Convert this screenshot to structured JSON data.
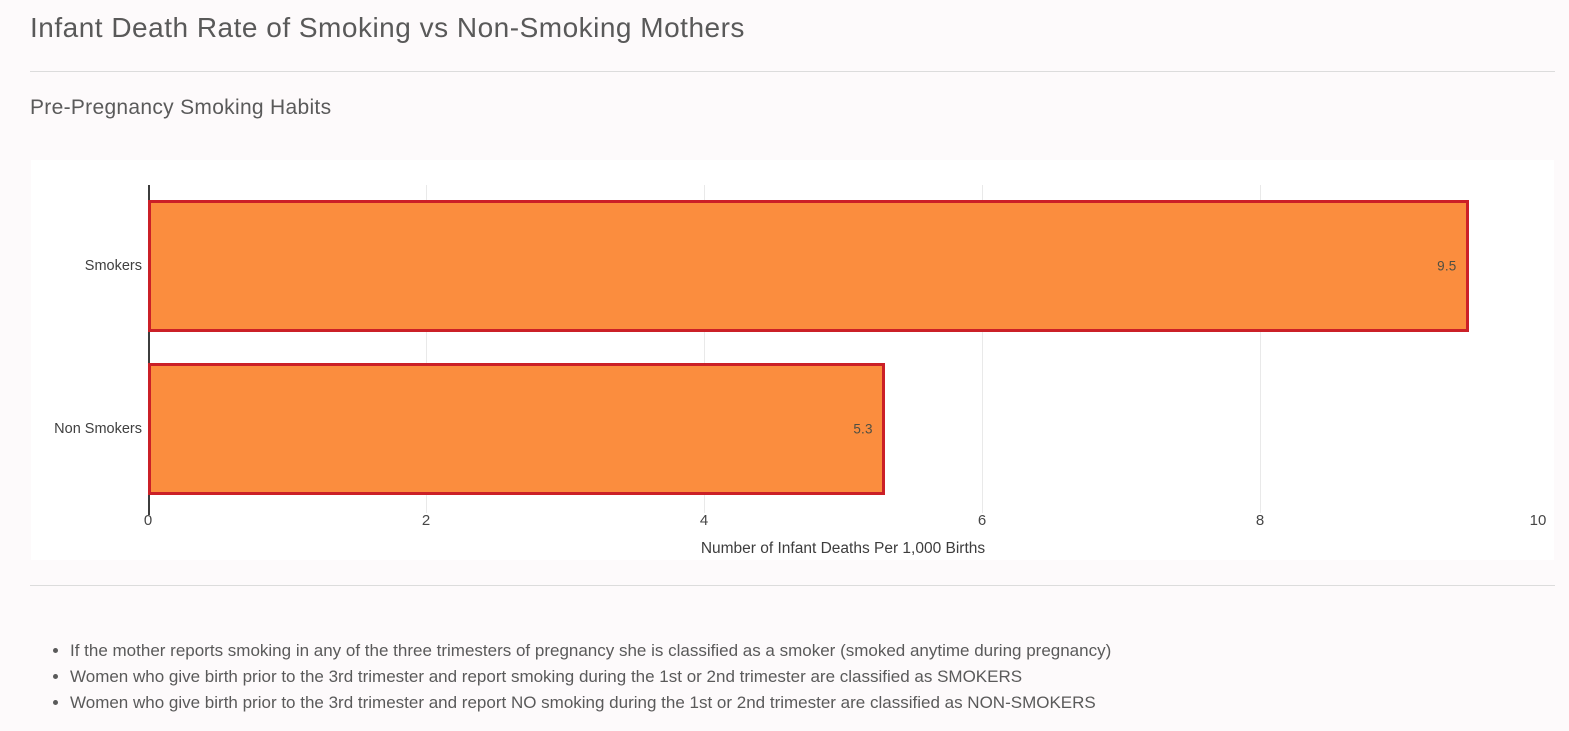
{
  "header": {
    "title": "Infant Death Rate of Smoking vs Non-Smoking Mothers",
    "subtitle": "Pre-Pregnancy Smoking Habits"
  },
  "chart_data": {
    "type": "bar",
    "orientation": "horizontal",
    "categories": [
      "Smokers",
      "Non Smokers"
    ],
    "values": [
      9.5,
      5.3
    ],
    "value_labels": [
      "9.5",
      "5.3"
    ],
    "xlabel": "Number of Infant Deaths Per 1,000 Births",
    "ylabel": "",
    "xlim": [
      0,
      10
    ],
    "xticks": [
      0,
      2,
      4,
      6,
      8,
      10
    ],
    "grid": "vertical-gridlines-at-interior-ticks",
    "legend": "none",
    "bar_fill_color": "#fb8d3e",
    "bar_border_color": "#cb2027"
  },
  "notes": [
    "If the mother reports smoking in any of the three trimesters of pregnancy she is classified as a smoker (smoked anytime during pregnancy)",
    "Women who give birth prior to the 3rd trimester and report smoking during the 1st or 2nd trimester are classified as SMOKERS",
    "Women who give birth prior to the 3rd trimester and report NO smoking during the 1st or 2nd trimester are classified as NON-SMOKERS"
  ],
  "colors": {
    "page_background": "#fdfafb",
    "panel_background": "#ffffff",
    "divider": "#dcdcdc",
    "title_text": "#595959",
    "axis_text": "#464646"
  }
}
